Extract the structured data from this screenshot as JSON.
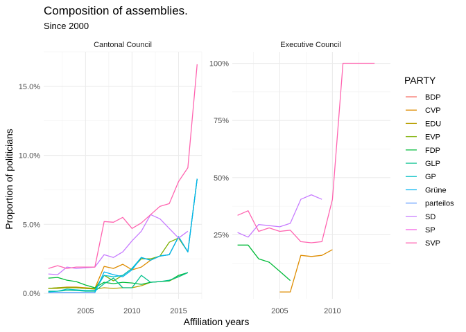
{
  "chart_data": {
    "type": "line",
    "title": "Composition of assemblies.",
    "subtitle": "Since 2000",
    "xlabel": "Affiliation years",
    "ylabel": "Proportion of politicians",
    "legend_title": "PARTY",
    "legend_position": "right",
    "grid": true,
    "parties": [
      {
        "name": "BDP",
        "color": "#F8766D"
      },
      {
        "name": "CVP",
        "color": "#DE8C00"
      },
      {
        "name": "EDU",
        "color": "#B79F00"
      },
      {
        "name": "EVP",
        "color": "#7CAE00"
      },
      {
        "name": "FDP",
        "color": "#00BA38"
      },
      {
        "name": "GLP",
        "color": "#00C08B"
      },
      {
        "name": "GP",
        "color": "#00BFC4"
      },
      {
        "name": "Grüne",
        "color": "#00B4F0"
      },
      {
        "name": "parteilos",
        "color": "#619CFF"
      },
      {
        "name": "SD",
        "color": "#C77CFF"
      },
      {
        "name": "SP",
        "color": "#F564E3"
      },
      {
        "name": "SVP",
        "color": "#FF64B0"
      }
    ],
    "panels": [
      {
        "title": "Cantonal Council",
        "xlim": [
          2000.5,
          2017.5
        ],
        "ylim": [
          -0.4,
          17.5
        ],
        "x_ticks": [
          2005,
          2010,
          2015
        ],
        "x_tick_labels": [
          "2005",
          "2010",
          "2015"
        ],
        "y_ticks": [
          0,
          5,
          10,
          15
        ],
        "y_tick_labels": [
          "0.0%",
          "5.0%",
          "10.0%",
          "15.0%"
        ],
        "series": [
          {
            "name": "CVP",
            "x": [
              2001,
              2002,
              2003,
              2004,
              2005,
              2006,
              2007,
              2008,
              2009,
              2010,
              2011,
              2012,
              2013,
              2014,
              2015,
              2016
            ],
            "y": [
              0.35,
              0.4,
              0.45,
              0.45,
              0.4,
              0.35,
              1.95,
              1.8,
              2.1,
              1.7,
              1.9,
              2.4,
              2.7,
              2.8,
              4.1,
              3.0
            ]
          },
          {
            "name": "EDU",
            "x": [
              2001,
              2002,
              2003,
              2004,
              2005,
              2006,
              2007,
              2008,
              2009,
              2010,
              2011,
              2012,
              2013,
              2014,
              2015,
              2016
            ],
            "y": [
              0.35,
              0.35,
              0.4,
              0.4,
              0.35,
              0.3,
              0.4,
              0.35,
              0.4,
              0.4,
              0.55,
              0.8,
              0.85,
              0.9,
              1.2,
              1.5
            ]
          },
          {
            "name": "EVP",
            "x": [
              2001,
              2002,
              2003,
              2004,
              2005,
              2006,
              2007,
              2008,
              2009,
              2010,
              2011,
              2012,
              2013,
              2014,
              2015,
              2016,
              2017
            ],
            "y": [
              0.35,
              0.4,
              0.4,
              0.4,
              0.35,
              0.35,
              1.3,
              0.9,
              1.3,
              1.8,
              2.5,
              2.5,
              2.7,
              3.7,
              4.0,
              3.0,
              8.3
            ]
          },
          {
            "name": "FDP",
            "x": [
              2001,
              2002,
              2003,
              2004,
              2005,
              2006,
              2007,
              2008,
              2009,
              2010,
              2011,
              2012,
              2013,
              2014,
              2015,
              2016
            ],
            "y": [
              1.1,
              1.15,
              0.95,
              0.85,
              0.6,
              0.4,
              0.8,
              0.7,
              0.8,
              0.75,
              0.65,
              0.8,
              0.85,
              0.9,
              1.3,
              1.5
            ]
          },
          {
            "name": "GLP",
            "x": [
              2001,
              2002,
              2003,
              2004,
              2005,
              2006,
              2007,
              2008,
              2009,
              2010,
              2011,
              2012,
              2013,
              2014,
              2015,
              2016
            ],
            "y": [
              0.15,
              0.15,
              0.2,
              0.2,
              0.15,
              0.15,
              0.7,
              1.1,
              0.4,
              0.4,
              1.3,
              0.8,
              0.85,
              0.95,
              1.2,
              1.5
            ]
          },
          {
            "name": "GP",
            "x": [
              2001,
              2002,
              2003,
              2004,
              2005,
              2006,
              2007,
              2008,
              2009,
              2010,
              2011,
              2012,
              2013,
              2014,
              2015,
              2016,
              2017
            ],
            "y": [
              0.1,
              0.15,
              0.3,
              0.25,
              0.2,
              0.2,
              1.3,
              1.2,
              1.3,
              1.8,
              2.6,
              2.4,
              2.7,
              2.8,
              4.1,
              3.0,
              8.3
            ]
          },
          {
            "name": "Grüne",
            "x": [
              2001,
              2002,
              2003,
              2004,
              2005,
              2006,
              2007,
              2008,
              2009,
              2010,
              2011,
              2012,
              2013,
              2014,
              2015,
              2016,
              2017
            ],
            "y": [
              0.05,
              0.05,
              0.05,
              0.05,
              0.05,
              0.05,
              1.55,
              1.35,
              1.2,
              1.7,
              2.6,
              2.4,
              2.7,
              2.8,
              4.1,
              3.0,
              8.3
            ]
          },
          {
            "name": "parteilos",
            "x": [
              2001,
              2002,
              2003,
              2004,
              2005,
              2006
            ],
            "y": [
              0.05,
              0.05,
              0.05,
              0.05,
              0.05,
              0.05
            ]
          },
          {
            "name": "SD",
            "x": [
              2001,
              2002,
              2003,
              2004,
              2005,
              2006,
              2007,
              2008,
              2009,
              2010,
              2011,
              2012,
              2013,
              2014,
              2015,
              2016
            ],
            "y": [
              1.4,
              1.35,
              1.9,
              1.8,
              1.85,
              1.9,
              2.8,
              2.6,
              3.0,
              3.8,
              4.5,
              5.7,
              5.4,
              4.7,
              4.0,
              4.5
            ]
          },
          {
            "name": "SVP",
            "x": [
              2001,
              2002,
              2003,
              2004,
              2005,
              2006,
              2007,
              2008,
              2009,
              2010,
              2011,
              2012,
              2013,
              2014,
              2015,
              2016,
              2017
            ],
            "y": [
              1.8,
              2.0,
              1.8,
              1.9,
              1.9,
              1.9,
              5.2,
              5.15,
              5.5,
              4.7,
              5.1,
              5.7,
              6.3,
              6.5,
              8.1,
              9.1,
              16.6
            ]
          }
        ]
      },
      {
        "title": "Executive Council",
        "xlim": [
          2000.5,
          2015.5
        ],
        "ylim": [
          -3,
          105
        ],
        "x_ticks": [
          2005,
          2010
        ],
        "x_tick_labels": [
          "2005",
          "2010"
        ],
        "y_ticks": [
          25,
          50,
          75,
          100
        ],
        "y_tick_labels": [
          "25%",
          "50%",
          "75%",
          "100%"
        ],
        "series": [
          {
            "name": "CVP",
            "x": [
              2005,
              2006,
              2007,
              2008,
              2009,
              2010
            ],
            "y": [
              0,
              0,
              16,
              15.5,
              16,
              18.5
            ]
          },
          {
            "name": "FDP",
            "x": [
              2001,
              2002,
              2003,
              2004,
              2005,
              2006
            ],
            "y": [
              20.5,
              20.5,
              14.5,
              13,
              9,
              5
            ]
          },
          {
            "name": "SD",
            "x": [
              2001,
              2002,
              2003,
              2004,
              2005,
              2006,
              2007,
              2008,
              2009
            ],
            "y": [
              26,
              24,
              29.5,
              29,
              28.5,
              30,
              40.5,
              42.5,
              40.5
            ]
          },
          {
            "name": "SVP",
            "x": [
              2001,
              2002,
              2003,
              2004,
              2005,
              2006,
              2007,
              2008,
              2009,
              2010,
              2011,
              2012,
              2013,
              2014
            ],
            "y": [
              33.5,
              35.5,
              26.5,
              28,
              26.5,
              27,
              22,
              21.5,
              22,
              40.5,
              100,
              100,
              100,
              100
            ]
          }
        ]
      }
    ]
  }
}
